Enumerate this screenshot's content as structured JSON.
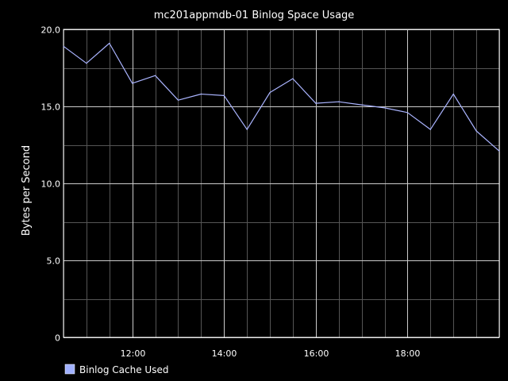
{
  "colors": {
    "background": "#000000",
    "plot_border": "#ffffff",
    "grid_major": "#cccccc",
    "grid_minor": "#555555",
    "series_line": "#aab4ff",
    "legend_swatch": "#a0b0ff",
    "text": "#ffffff"
  },
  "chart_data": {
    "type": "line",
    "title": "mc201appmdb-01 Binlog Space Usage",
    "xlabel": "",
    "ylabel": "Bytes per Second",
    "x_unit": "time of day (hours)",
    "xlim": [
      10.5,
      20.0
    ],
    "ylim": [
      0,
      20
    ],
    "y_ticks": [
      {
        "value": 0,
        "label": "0"
      },
      {
        "value": 5,
        "label": "5.0"
      },
      {
        "value": 10,
        "label": "10.0"
      },
      {
        "value": 15,
        "label": "15.0"
      },
      {
        "value": 20,
        "label": "20.0"
      }
    ],
    "x_ticks": [
      {
        "value": 12,
        "label": "12:00"
      },
      {
        "value": 14,
        "label": "14:00"
      },
      {
        "value": 16,
        "label": "16:00"
      },
      {
        "value": 18,
        "label": "18:00"
      }
    ],
    "x_minor_step": 0.5,
    "y_minor_step": 2.5,
    "grid": true,
    "legend_position": "bottom-left",
    "series": [
      {
        "name": "Binlog Cache Used",
        "color": "#aab4ff",
        "x": [
          10.5,
          11.0,
          11.5,
          12.0,
          12.5,
          13.0,
          13.5,
          14.0,
          14.5,
          15.0,
          15.5,
          16.0,
          16.5,
          17.0,
          17.5,
          18.0,
          18.5,
          19.0,
          19.5,
          20.0
        ],
        "y": [
          18.9,
          17.8,
          19.1,
          16.5,
          17.0,
          15.4,
          15.8,
          15.7,
          13.5,
          15.9,
          16.8,
          15.2,
          15.3,
          15.1,
          14.9,
          14.6,
          13.5,
          15.8,
          13.4,
          12.1
        ]
      }
    ]
  }
}
